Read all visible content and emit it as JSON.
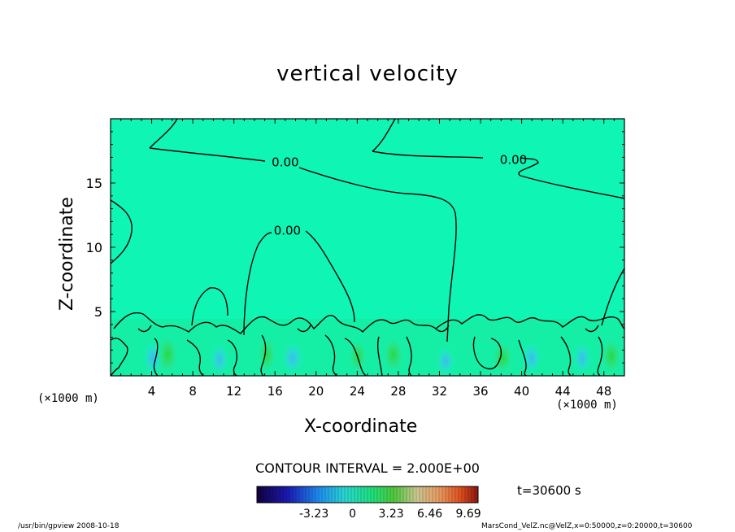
{
  "chart_data": {
    "type": "heatmap",
    "title": "vertical velocity",
    "xlabel": "X-coordinate",
    "ylabel": "Z-coordinate",
    "x_unit_left": "(×1000 m)",
    "x_unit_right": "(×1000 m)",
    "xlim": [
      0,
      50
    ],
    "ylim": [
      0,
      20
    ],
    "x_ticks": [
      4,
      8,
      12,
      16,
      20,
      24,
      28,
      32,
      36,
      40,
      44,
      48
    ],
    "y_ticks": [
      5,
      10,
      15
    ],
    "contour_labels": [
      {
        "text": "0.00",
        "x": 17,
        "z": 16.6
      },
      {
        "text": "0.00",
        "x": 39.2,
        "z": 16.8
      },
      {
        "text": "0.00",
        "x": 17.2,
        "z": 11.3
      }
    ],
    "contour_interval_label": "CONTOUR INTERVAL = 2.000E+00",
    "colorbar": {
      "ticks": [
        "-3.23",
        "0",
        "3.23",
        "6.46",
        "9.69"
      ],
      "range": [
        -8.0,
        10.5
      ]
    },
    "time_label": "t=30600 s",
    "footer_left": "/usr/bin/gpview   2008-10-18",
    "footer_right": "MarsCond_VelZ.nc@VelZ,x=0:50000,z=0:20000,t=30600",
    "colors": {
      "background_field": "#0ff5b4",
      "updraft": "#2adc50",
      "downdraft": "#3cc8f0",
      "contour": "#000000"
    }
  }
}
